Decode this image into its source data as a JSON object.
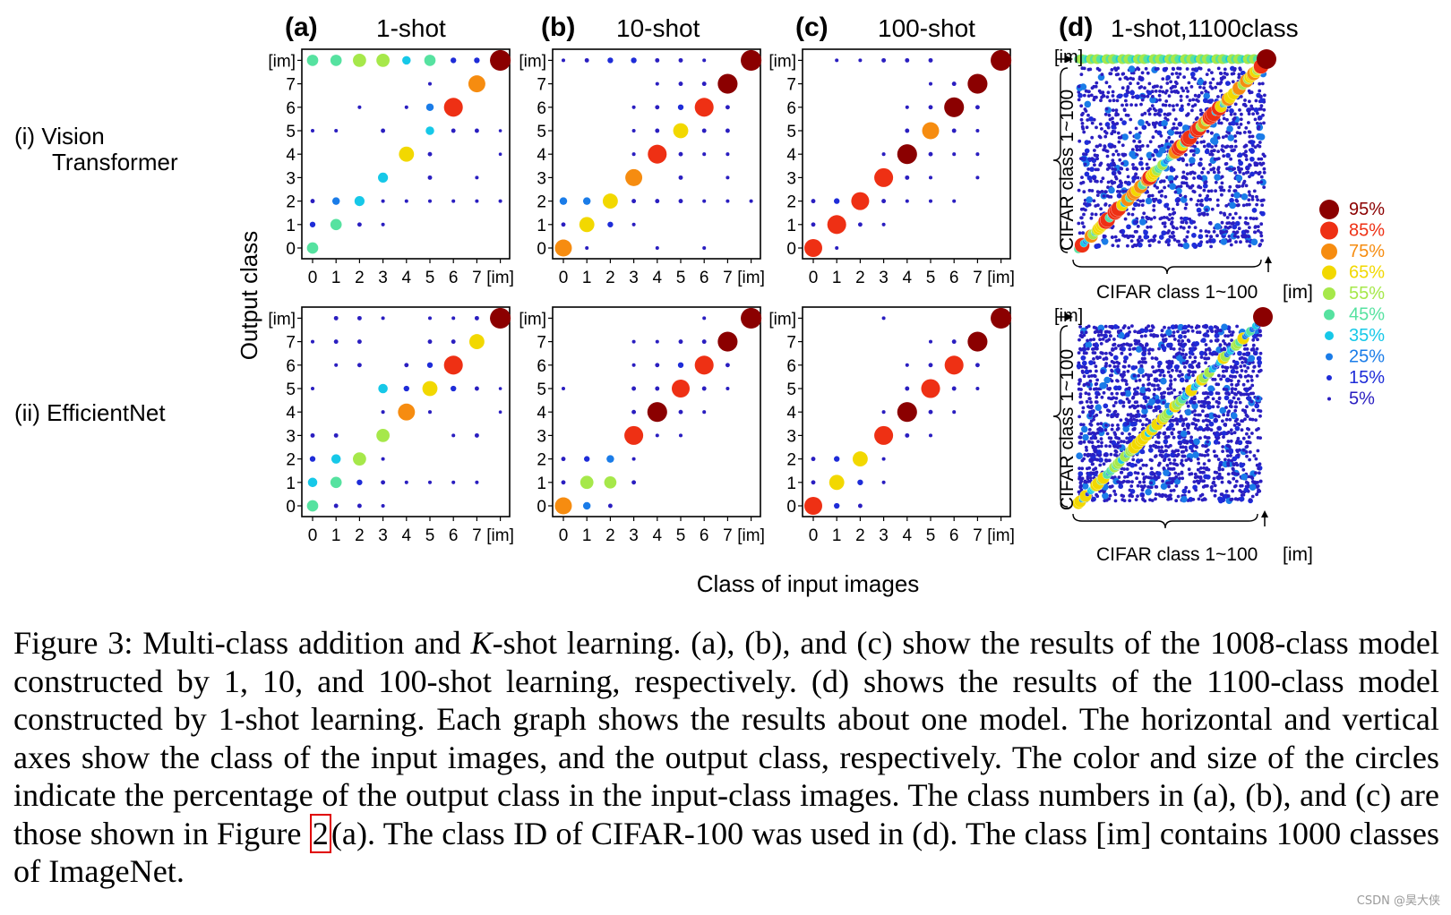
{
  "figure": {
    "row_labels": [
      {
        "lines": [
          "(i) Vision",
          "Transformer"
        ]
      },
      {
        "lines": [
          "(ii) EfficientNet"
        ]
      }
    ],
    "panels": [
      {
        "letter": "(a)",
        "title": "1-shot"
      },
      {
        "letter": "(b)",
        "title": "10-shot"
      },
      {
        "letter": "(c)",
        "title": "100-shot"
      },
      {
        "letter": "(d)",
        "title": "1-shot,1100class"
      }
    ],
    "y_axis_label": "Output class",
    "x_axis_label": "Class of input images",
    "cifar_x_label": "CIFAR class 1~100",
    "cifar_y_label": "CIFAR class 1~100",
    "cifar_im_label": "[im]",
    "legend": {
      "items": [
        {
          "label": "95%",
          "color": "#8b0000"
        },
        {
          "label": "85%",
          "color": "#ee3014"
        },
        {
          "label": "75%",
          "color": "#f68c10"
        },
        {
          "label": "65%",
          "color": "#f2d800"
        },
        {
          "label": "55%",
          "color": "#a6e84a"
        },
        {
          "label": "45%",
          "color": "#56e2a0"
        },
        {
          "label": "35%",
          "color": "#16c8e8"
        },
        {
          "label": "25%",
          "color": "#1a7ce8"
        },
        {
          "label": "15%",
          "color": "#1e2cd8"
        },
        {
          "label": "5%",
          "color": "#2a1ec0"
        }
      ]
    }
  },
  "chart_data": [
    {
      "type": "scatter",
      "panel": "(a) 1-shot",
      "row": "(i) Vision Transformer",
      "categories": [
        "0",
        "1",
        "2",
        "3",
        "4",
        "5",
        "6",
        "7",
        "[im]"
      ],
      "xlabel": "Class of input images",
      "ylabel": "Output class",
      "points": [
        [
          0,
          0,
          45
        ],
        [
          0,
          1,
          15
        ],
        [
          1,
          1,
          45
        ],
        [
          2,
          1,
          8
        ],
        [
          3,
          1,
          4
        ],
        [
          0,
          2,
          8
        ],
        [
          1,
          2,
          25
        ],
        [
          2,
          2,
          38
        ],
        [
          3,
          2,
          4
        ],
        [
          4,
          2,
          4
        ],
        [
          5,
          2,
          4
        ],
        [
          6,
          2,
          4
        ],
        [
          7,
          2,
          4
        ],
        [
          8,
          2,
          4
        ],
        [
          3,
          3,
          38
        ],
        [
          5,
          3,
          8
        ],
        [
          4,
          4,
          65
        ],
        [
          5,
          4,
          8
        ],
        [
          0,
          5,
          4
        ],
        [
          1,
          5,
          4
        ],
        [
          3,
          5,
          8
        ],
        [
          5,
          5,
          30
        ],
        [
          6,
          5,
          8
        ],
        [
          7,
          5,
          8
        ],
        [
          5,
          6,
          25
        ],
        [
          6,
          6,
          85
        ],
        [
          2,
          6,
          4
        ],
        [
          4,
          6,
          4
        ],
        [
          7,
          7,
          75
        ],
        [
          5,
          7,
          4
        ],
        [
          0,
          8,
          45
        ],
        [
          1,
          8,
          45
        ],
        [
          2,
          8,
          55
        ],
        [
          3,
          8,
          55
        ],
        [
          4,
          8,
          30
        ],
        [
          5,
          8,
          45
        ],
        [
          6,
          8,
          15
        ],
        [
          7,
          8,
          15
        ],
        [
          8,
          8,
          95
        ],
        [
          8,
          4,
          2
        ],
        [
          8,
          5,
          2
        ],
        [
          7,
          3,
          4
        ]
      ]
    },
    {
      "type": "scatter",
      "panel": "(b) 10-shot",
      "row": "(i) Vision Transformer",
      "categories": [
        "0",
        "1",
        "2",
        "3",
        "4",
        "5",
        "6",
        "7",
        "[im]"
      ],
      "xlabel": "Class of input images",
      "ylabel": "Output class",
      "points": [
        [
          0,
          0,
          75
        ],
        [
          1,
          0,
          4
        ],
        [
          4,
          0,
          4
        ],
        [
          6,
          0,
          4
        ],
        [
          1,
          1,
          65
        ],
        [
          2,
          1,
          15
        ],
        [
          0,
          1,
          8
        ],
        [
          3,
          1,
          4
        ],
        [
          0,
          2,
          25
        ],
        [
          1,
          2,
          25
        ],
        [
          2,
          2,
          65
        ],
        [
          3,
          2,
          8
        ],
        [
          4,
          2,
          8
        ],
        [
          5,
          2,
          8
        ],
        [
          6,
          2,
          4
        ],
        [
          7,
          2,
          4
        ],
        [
          8,
          2,
          4
        ],
        [
          3,
          3,
          75
        ],
        [
          5,
          3,
          8
        ],
        [
          7,
          3,
          4
        ],
        [
          4,
          4,
          85
        ],
        [
          3,
          4,
          4
        ],
        [
          5,
          4,
          8
        ],
        [
          6,
          4,
          4
        ],
        [
          7,
          4,
          4
        ],
        [
          5,
          5,
          65
        ],
        [
          4,
          5,
          8
        ],
        [
          6,
          5,
          8
        ],
        [
          7,
          5,
          8
        ],
        [
          3,
          5,
          4
        ],
        [
          6,
          6,
          85
        ],
        [
          5,
          6,
          15
        ],
        [
          4,
          6,
          8
        ],
        [
          3,
          6,
          4
        ],
        [
          7,
          6,
          8
        ],
        [
          7,
          7,
          90
        ],
        [
          5,
          7,
          8
        ],
        [
          6,
          7,
          8
        ],
        [
          4,
          7,
          4
        ],
        [
          8,
          8,
          95
        ],
        [
          0,
          8,
          4
        ],
        [
          1,
          8,
          8
        ],
        [
          2,
          8,
          15
        ],
        [
          3,
          8,
          15
        ],
        [
          4,
          8,
          8
        ],
        [
          5,
          8,
          8
        ],
        [
          6,
          8,
          4
        ]
      ]
    },
    {
      "type": "scatter",
      "panel": "(c) 100-shot",
      "row": "(i) Vision Transformer",
      "categories": [
        "0",
        "1",
        "2",
        "3",
        "4",
        "5",
        "6",
        "7",
        "[im]"
      ],
      "xlabel": "Class of input images",
      "ylabel": "Output class",
      "points": [
        [
          0,
          0,
          80
        ],
        [
          1,
          0,
          4
        ],
        [
          0,
          1,
          8
        ],
        [
          1,
          1,
          85
        ],
        [
          2,
          1,
          8
        ],
        [
          3,
          1,
          4
        ],
        [
          0,
          2,
          8
        ],
        [
          1,
          2,
          15
        ],
        [
          2,
          2,
          80
        ],
        [
          3,
          2,
          8
        ],
        [
          4,
          2,
          4
        ],
        [
          5,
          2,
          4
        ],
        [
          6,
          2,
          4
        ],
        [
          3,
          3,
          85
        ],
        [
          4,
          3,
          8
        ],
        [
          5,
          3,
          4
        ],
        [
          7,
          3,
          4
        ],
        [
          4,
          4,
          90
        ],
        [
          5,
          4,
          8
        ],
        [
          6,
          4,
          4
        ],
        [
          7,
          4,
          4
        ],
        [
          3,
          4,
          4
        ],
        [
          5,
          5,
          75
        ],
        [
          4,
          5,
          8
        ],
        [
          6,
          5,
          8
        ],
        [
          7,
          5,
          4
        ],
        [
          6,
          6,
          90
        ],
        [
          5,
          6,
          8
        ],
        [
          7,
          6,
          8
        ],
        [
          4,
          6,
          4
        ],
        [
          7,
          7,
          90
        ],
        [
          6,
          7,
          8
        ],
        [
          5,
          7,
          4
        ],
        [
          8,
          8,
          95
        ],
        [
          1,
          8,
          4
        ],
        [
          2,
          8,
          4
        ],
        [
          3,
          8,
          8
        ],
        [
          4,
          8,
          8
        ],
        [
          5,
          8,
          8
        ]
      ]
    },
    {
      "type": "scatter",
      "panel": "(a) 1-shot",
      "row": "(ii) EfficientNet",
      "categories": [
        "0",
        "1",
        "2",
        "3",
        "4",
        "5",
        "6",
        "7",
        "[im]"
      ],
      "xlabel": "Class of input images",
      "ylabel": "Output class",
      "points": [
        [
          0,
          0,
          45
        ],
        [
          1,
          0,
          8
        ],
        [
          2,
          0,
          8
        ],
        [
          3,
          0,
          4
        ],
        [
          0,
          1,
          35
        ],
        [
          1,
          1,
          45
        ],
        [
          2,
          1,
          15
        ],
        [
          3,
          1,
          8
        ],
        [
          4,
          1,
          4
        ],
        [
          5,
          1,
          4
        ],
        [
          6,
          1,
          4
        ],
        [
          7,
          1,
          4
        ],
        [
          0,
          2,
          15
        ],
        [
          1,
          2,
          35
        ],
        [
          2,
          2,
          55
        ],
        [
          3,
          2,
          4
        ],
        [
          0,
          3,
          8
        ],
        [
          1,
          3,
          8
        ],
        [
          3,
          3,
          55
        ],
        [
          6,
          3,
          4
        ],
        [
          7,
          3,
          8
        ],
        [
          4,
          4,
          75
        ],
        [
          3,
          4,
          4
        ],
        [
          5,
          4,
          4
        ],
        [
          3,
          5,
          35
        ],
        [
          4,
          5,
          15
        ],
        [
          5,
          5,
          65
        ],
        [
          6,
          5,
          15
        ],
        [
          7,
          5,
          8
        ],
        [
          0,
          5,
          4
        ],
        [
          6,
          6,
          85
        ],
        [
          4,
          6,
          8
        ],
        [
          5,
          6,
          15
        ],
        [
          2,
          6,
          8
        ],
        [
          1,
          6,
          4
        ],
        [
          7,
          7,
          65
        ],
        [
          5,
          7,
          8
        ],
        [
          6,
          7,
          8
        ],
        [
          0,
          7,
          4
        ],
        [
          1,
          7,
          8
        ],
        [
          2,
          7,
          8
        ],
        [
          8,
          8,
          95
        ],
        [
          1,
          8,
          8
        ],
        [
          2,
          8,
          8
        ],
        [
          3,
          8,
          4
        ],
        [
          5,
          8,
          4
        ],
        [
          6,
          8,
          4
        ],
        [
          7,
          8,
          8
        ],
        [
          8,
          4,
          2
        ],
        [
          8,
          5,
          2
        ]
      ]
    },
    {
      "type": "scatter",
      "panel": "(b) 10-shot",
      "row": "(ii) EfficientNet",
      "categories": [
        "0",
        "1",
        "2",
        "3",
        "4",
        "5",
        "6",
        "7",
        "[im]"
      ],
      "xlabel": "Class of input images",
      "ylabel": "Output class",
      "points": [
        [
          0,
          0,
          75
        ],
        [
          1,
          0,
          25
        ],
        [
          2,
          0,
          8
        ],
        [
          0,
          1,
          8
        ],
        [
          1,
          1,
          55
        ],
        [
          2,
          1,
          50
        ],
        [
          3,
          1,
          8
        ],
        [
          0,
          2,
          8
        ],
        [
          1,
          2,
          15
        ],
        [
          2,
          2,
          25
        ],
        [
          3,
          2,
          4
        ],
        [
          3,
          3,
          85
        ],
        [
          4,
          3,
          4
        ],
        [
          5,
          3,
          4
        ],
        [
          4,
          4,
          90
        ],
        [
          3,
          4,
          8
        ],
        [
          5,
          4,
          8
        ],
        [
          6,
          4,
          4
        ],
        [
          5,
          5,
          80
        ],
        [
          4,
          5,
          8
        ],
        [
          6,
          5,
          8
        ],
        [
          7,
          5,
          4
        ],
        [
          3,
          5,
          8
        ],
        [
          0,
          5,
          4
        ],
        [
          6,
          6,
          85
        ],
        [
          5,
          6,
          15
        ],
        [
          4,
          6,
          8
        ],
        [
          7,
          6,
          8
        ],
        [
          3,
          6,
          4
        ],
        [
          7,
          7,
          90
        ],
        [
          6,
          7,
          8
        ],
        [
          5,
          7,
          8
        ],
        [
          3,
          7,
          4
        ],
        [
          4,
          7,
          4
        ],
        [
          8,
          8,
          95
        ],
        [
          6,
          8,
          4
        ]
      ]
    },
    {
      "type": "scatter",
      "panel": "(c) 100-shot",
      "row": "(ii) EfficientNet",
      "categories": [
        "0",
        "1",
        "2",
        "3",
        "4",
        "5",
        "6",
        "7",
        "[im]"
      ],
      "xlabel": "Class of input images",
      "ylabel": "Output class",
      "points": [
        [
          0,
          0,
          80
        ],
        [
          1,
          0,
          15
        ],
        [
          2,
          0,
          8
        ],
        [
          0,
          1,
          8
        ],
        [
          1,
          1,
          65
        ],
        [
          2,
          1,
          15
        ],
        [
          3,
          1,
          4
        ],
        [
          0,
          2,
          8
        ],
        [
          1,
          2,
          15
        ],
        [
          2,
          2,
          65
        ],
        [
          3,
          2,
          4
        ],
        [
          3,
          3,
          85
        ],
        [
          4,
          3,
          8
        ],
        [
          5,
          3,
          4
        ],
        [
          4,
          4,
          90
        ],
        [
          5,
          4,
          8
        ],
        [
          6,
          4,
          4
        ],
        [
          3,
          4,
          4
        ],
        [
          5,
          5,
          85
        ],
        [
          4,
          5,
          8
        ],
        [
          6,
          5,
          8
        ],
        [
          7,
          5,
          4
        ],
        [
          6,
          6,
          85
        ],
        [
          5,
          6,
          8
        ],
        [
          7,
          6,
          8
        ],
        [
          4,
          6,
          4
        ],
        [
          7,
          7,
          90
        ],
        [
          6,
          7,
          8
        ],
        [
          5,
          7,
          4
        ],
        [
          8,
          8,
          95
        ],
        [
          3,
          8,
          4
        ]
      ]
    },
    {
      "type": "scatter",
      "panel": "(d) 1-shot,1100class",
      "row": "(i) Vision Transformer",
      "xlabel": "CIFAR class 1~100",
      "ylabel": "CIFAR class 1~100",
      "note": "diagonal of CIFAR classes 1~100 with values mostly 45-85%, dense off-diagonal 5-15% points, top row [im] 45-55%, corner [im]/[im] 95%"
    },
    {
      "type": "scatter",
      "panel": "(d) 1-shot,1100class",
      "row": "(ii) EfficientNet",
      "xlabel": "CIFAR class 1~100",
      "ylabel": "CIFAR class 1~100",
      "note": "diagonal of CIFAR classes 1~100 with values mostly 35-65%, very dense off-diagonal 5-25% points, corner [im]/[im] 95%"
    }
  ],
  "caption": {
    "p1": "Figure 3: Multi-class addition and ",
    "k": "K",
    "p2": "-shot learning. (a), (b), and (c) show the results of the 1008-class model constructed by 1, 10, and 100-shot learning, respectively. (d) shows the results of the 1100-class model constructed by 1-shot learning. Each graph shows the results about one model. The horizontal and vertical axes show the class of the input images, and the output class, respectively. The color and size of the circles indicate the percentage of the output class in the input-class images. The class numbers in (a), (b), and (c) are those shown in Figure ",
    "ref": "2",
    "p3": "(a). The class ID of CIFAR-100 was used in (d). The class [im] contains 1000 classes of ImageNet."
  },
  "watermark": "CSDN @昊大侠"
}
